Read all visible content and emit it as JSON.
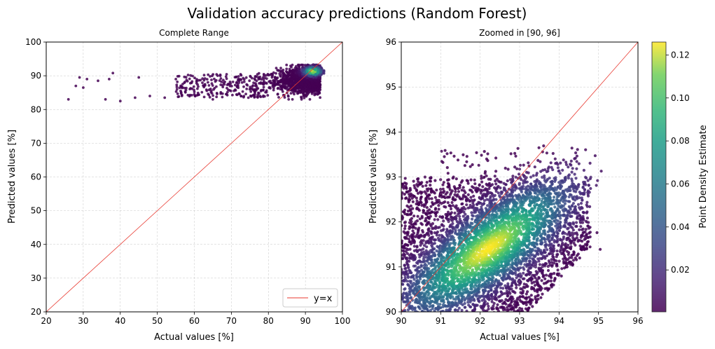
{
  "figure": {
    "title": "Validation accuracy predictions (Random Forest)"
  },
  "chart_data": [
    {
      "type": "scatter",
      "title": "Complete Range",
      "xlabel": "Actual values [%]",
      "ylabel": "Predicted values [%]",
      "xlim": [
        20,
        100
      ],
      "ylim": [
        20,
        100
      ],
      "xticks": [
        "20",
        "30",
        "40",
        "50",
        "60",
        "70",
        "80",
        "90",
        "100"
      ],
      "yticks": [
        "20",
        "30",
        "40",
        "50",
        "60",
        "70",
        "80",
        "90",
        "100"
      ],
      "grid": true,
      "legend": {
        "placement": "bottom-right",
        "entries": [
          "y=x"
        ]
      },
      "reference_line": {
        "label": "y=x",
        "color": "#e8382f"
      },
      "point_cloud": {
        "color_by": "density",
        "core_center": [
          92,
          91.3
        ],
        "regions": [
          {
            "x_range": [
              26,
              94
            ],
            "y_range": [
              82.5,
              91
            ]
          },
          {
            "x_range": [
              75,
              95
            ],
            "y_range": [
              83,
              93
            ]
          }
        ],
        "isolated_points": [
          [
            26,
            83
          ],
          [
            28,
            87
          ],
          [
            29,
            89.5
          ],
          [
            30,
            86.5
          ],
          [
            31,
            89
          ],
          [
            34,
            88.5
          ],
          [
            36,
            83
          ],
          [
            37,
            89
          ],
          [
            38,
            90.8
          ],
          [
            40,
            82.5
          ],
          [
            44,
            83.5
          ],
          [
            45,
            89.5
          ],
          [
            48,
            84
          ],
          [
            52,
            83.5
          ],
          [
            55,
            89
          ],
          [
            60,
            84.5
          ],
          [
            65,
            83
          ],
          [
            67,
            90
          ]
        ]
      }
    },
    {
      "type": "scatter",
      "title": "Zoomed in [90, 96]",
      "xlabel": "Actual values [%]",
      "ylabel": "Predicted values [%]",
      "xlim": [
        90,
        96
      ],
      "ylim": [
        90,
        96
      ],
      "xticks": [
        "90",
        "91",
        "92",
        "93",
        "94",
        "95",
        "96"
      ],
      "yticks": [
        "90",
        "91",
        "92",
        "93",
        "94",
        "95",
        "96"
      ],
      "grid": true,
      "reference_line": {
        "label": "y=x",
        "color": "#e8382f"
      },
      "point_cloud": {
        "color_by": "density",
        "core_center": [
          92.2,
          91.4
        ],
        "x_range": [
          90,
          95
        ],
        "y_range": [
          90,
          93.6
        ]
      },
      "colorbar": {
        "label": "Point Density Estimate",
        "colormap": "viridis",
        "range": [
          0.0005,
          0.126
        ],
        "ticks": [
          "0.02",
          "0.04",
          "0.06",
          "0.08",
          "0.10",
          "0.12"
        ],
        "tick_values": [
          0.02,
          0.04,
          0.06,
          0.08,
          0.1,
          0.12
        ]
      }
    }
  ]
}
